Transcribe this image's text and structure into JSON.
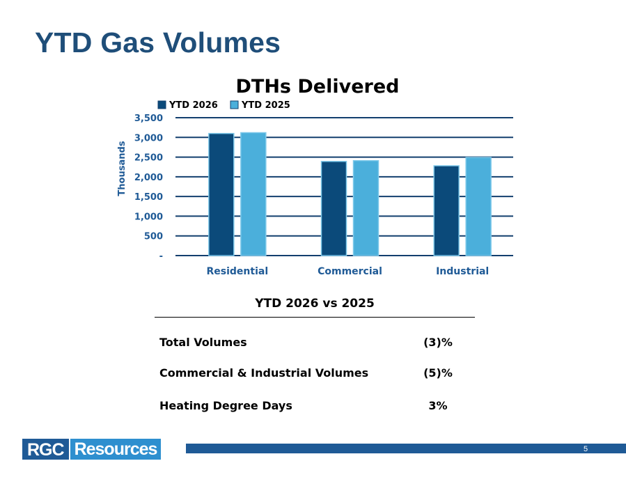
{
  "slide_title": "YTD Gas Volumes",
  "chart_data": {
    "type": "bar",
    "title": "DTHs Delivered",
    "ylabel": "Thousands",
    "xlabel": "",
    "categories": [
      "Residential",
      "Commercial",
      "Industrial"
    ],
    "series": [
      {
        "name": "YTD 2026",
        "values": [
          3100,
          2390,
          2280
        ],
        "color": "#0b4a7a"
      },
      {
        "name": "YTD 2025",
        "values": [
          3120,
          2410,
          2490
        ],
        "color": "#4bafdb"
      }
    ],
    "ylim": [
      0,
      3500
    ],
    "yticks": [
      0,
      500,
      1000,
      1500,
      2000,
      2500,
      3000,
      3500
    ],
    "ytick_labels": [
      "-",
      "500",
      "1,000",
      "1,500",
      "2,000",
      "2,500",
      "3,000",
      "3,500"
    ],
    "grid": true,
    "legend_position": "top-left"
  },
  "comparison": {
    "heading": "YTD 2026 vs 2025",
    "rows": [
      {
        "label": "Total Volumes",
        "value": "(3)%"
      },
      {
        "label": "Commercial & Industrial Volumes",
        "value": "(5)%"
      },
      {
        "label": "Heating Degree Days",
        "value": "3%"
      }
    ]
  },
  "logo": {
    "part1": "RGC",
    "part2": "Resources"
  },
  "page_number": "5",
  "colors": {
    "title": "#1f4e79",
    "axis_text": "#1f5a96",
    "footer_bar": "#1f5a96"
  }
}
